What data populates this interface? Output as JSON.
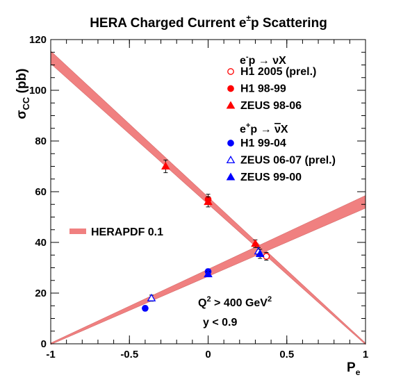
{
  "chart_data": {
    "type": "scatter",
    "title": {
      "main": "HERA Charged Current e",
      "sup": "±",
      "tail": "p Scattering"
    },
    "xlabel": {
      "main": "P",
      "sub": "e"
    },
    "ylabel": {
      "main": "σ",
      "sub": "CC",
      "tail": " (pb)"
    },
    "xlim": [
      -1,
      1
    ],
    "ylim": [
      0,
      120
    ],
    "x_ticks": [
      -1,
      -0.5,
      0,
      0.5,
      1
    ],
    "x_tick_labels": [
      "-1",
      "-0.5",
      "0",
      "0.5",
      "1"
    ],
    "y_ticks": [
      0,
      20,
      40,
      60,
      80,
      100,
      120
    ],
    "y_tick_labels": [
      "0",
      "20",
      "40",
      "60",
      "80",
      "100",
      "120"
    ],
    "grid": false,
    "legend_placement": "top-right",
    "legend_groups": [
      {
        "header": {
          "lead": "e",
          "sup": "-",
          "mid": "p → νX",
          "over": ""
        }
      },
      {
        "header": {
          "lead": "e",
          "sup": "+",
          "mid": "p → ",
          "over": "ν",
          "tail": "X"
        }
      }
    ],
    "series": [
      {
        "name": "H1 2005 (prel.)",
        "group": 0,
        "marker": "circle-open",
        "color": "#ff0000",
        "points": [
          {
            "x": 0.37,
            "y": 34.5,
            "err": 1.5
          }
        ]
      },
      {
        "name": "H1 98-99",
        "group": 0,
        "marker": "circle",
        "color": "#ff0000",
        "points": [
          {
            "x": 0.0,
            "y": 57.0,
            "err": 2.0
          }
        ]
      },
      {
        "name": "ZEUS 98-06",
        "group": 0,
        "marker": "triangle",
        "color": "#ff0000",
        "points": [
          {
            "x": -0.27,
            "y": 70.0,
            "err": 2.5
          },
          {
            "x": 0.0,
            "y": 56.0,
            "err": 2.0
          },
          {
            "x": 0.3,
            "y": 39.5,
            "err": 1.5
          }
        ]
      },
      {
        "name": "H1 99-04",
        "group": 1,
        "marker": "circle",
        "color": "#0000ff",
        "points": [
          {
            "x": -0.4,
            "y": 14.0,
            "err": 1.0
          },
          {
            "x": 0.0,
            "y": 28.5,
            "err": 1.0
          }
        ]
      },
      {
        "name": "ZEUS 06-07 (prel.)",
        "group": 1,
        "marker": "triangle-open",
        "color": "#0000ff",
        "points": [
          {
            "x": -0.36,
            "y": 18.0,
            "err": 1.2
          },
          {
            "x": 0.32,
            "y": 36.5,
            "err": 1.5
          }
        ]
      },
      {
        "name": "ZEUS 99-00",
        "group": 1,
        "marker": "triangle",
        "color": "#0000ff",
        "points": [
          {
            "x": 0.0,
            "y": 27.5,
            "err": 1.0
          },
          {
            "x": 0.33,
            "y": 35.5,
            "err": 1.8
          }
        ]
      }
    ],
    "bands": [
      {
        "name": "HERAPDF 0.1",
        "color": "#f08080",
        "lines": [
          {
            "x0": -1,
            "y0": 113,
            "x1": 1,
            "y1": 0,
            "w0": 2.5,
            "w1": 0.3
          },
          {
            "x0": -1,
            "y0": 0,
            "x1": 1,
            "y1": 56,
            "w0": 0.3,
            "w1": 2.5
          }
        ]
      }
    ],
    "annotations": [
      {
        "main": "Q",
        "sup": "2",
        "tail": " > 400 GeV",
        "sup2": "2"
      },
      {
        "main": "y < 0.9"
      }
    ]
  }
}
